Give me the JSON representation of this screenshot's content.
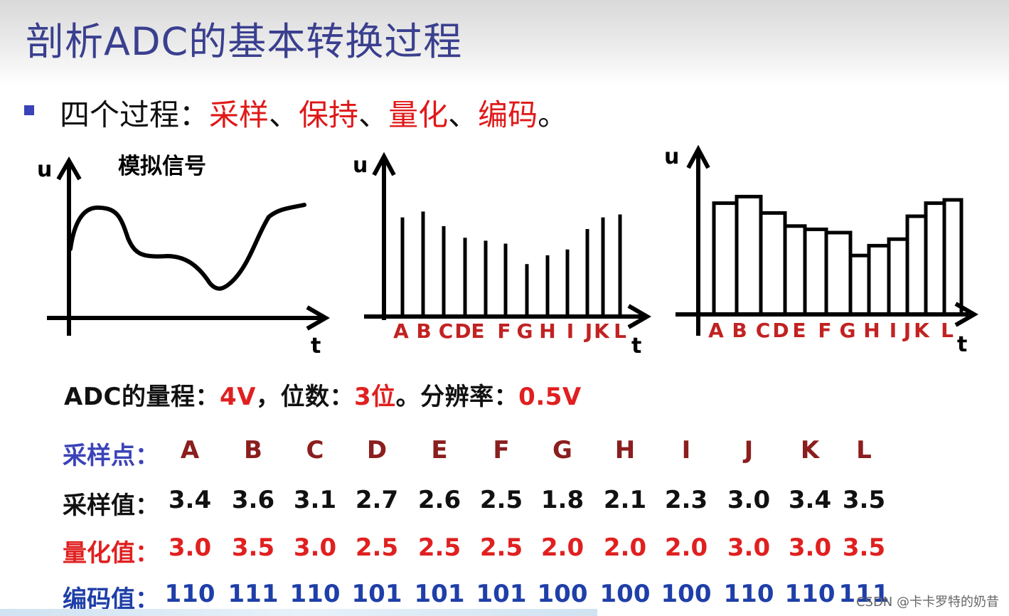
{
  "title": "剖析ADC的基本转换过程",
  "bullet": {
    "prefix": "四个过程：",
    "processes": [
      "采样",
      "保持",
      "量化",
      "编码"
    ],
    "separator": "、",
    "end": "。"
  },
  "diagrams": {
    "axis_u": "u",
    "axis_t": "t",
    "analog_title": "模拟信号",
    "letters": [
      "A",
      "B",
      "C",
      "D",
      "E",
      "F",
      "G",
      "H",
      "I",
      "J",
      "K",
      "L"
    ]
  },
  "info": {
    "range_label": "ADC的量程：",
    "range_value": "4V",
    "sep1": "，",
    "bits_label": "位数：",
    "bits_value": "3位",
    "sep2": "。",
    "res_label": "分辨率：",
    "res_value": "0.5V"
  },
  "table": {
    "labels": {
      "points": "采样点：",
      "samples": "采样值：",
      "quantized": "量化值：",
      "codes": "编码值："
    },
    "points": [
      "A",
      "B",
      "C",
      "D",
      "E",
      "F",
      "G",
      "H",
      "I",
      "J",
      "K",
      "L"
    ],
    "samples": [
      "3.4",
      "3.6",
      "3.1",
      "2.7",
      "2.6",
      "2.5",
      "1.8",
      "2.1",
      "2.3",
      "3.0",
      "3.4",
      "3.5"
    ],
    "quantized": [
      "3.0",
      "3.5",
      "3.0",
      "2.5",
      "2.5",
      "2.5",
      "2.0",
      "2.0",
      "2.0",
      "3.0",
      "3.0",
      "3.5"
    ],
    "codes": [
      "110",
      "111",
      "110",
      "101",
      "101",
      "101",
      "100",
      "100",
      "100",
      "110",
      "110",
      "111"
    ]
  },
  "watermark": "CSDN @卡卡罗特的奶昔",
  "colors": {
    "title": "#3a3f8f",
    "accent_red": "#e02020",
    "code_blue": "#1f3fa8",
    "label_blue": "#3b43b8"
  },
  "chart_data": [
    {
      "type": "line",
      "x_label": "t",
      "y_label": "u",
      "title": "模拟信号"
    },
    {
      "type": "bar",
      "x_label": "t",
      "y_label": "u",
      "categories": [
        "A",
        "B",
        "C",
        "D",
        "E",
        "F",
        "G",
        "H",
        "I",
        "J",
        "K",
        "L"
      ],
      "values": [
        3.4,
        3.6,
        3.1,
        2.7,
        2.6,
        2.5,
        1.8,
        2.1,
        2.3,
        3.0,
        3.4,
        3.5
      ]
    },
    {
      "type": "bar",
      "x_label": "t",
      "y_label": "u",
      "categories": [
        "A",
        "B",
        "C",
        "D",
        "E",
        "F",
        "G",
        "H",
        "I",
        "J",
        "K",
        "L"
      ],
      "values": [
        3.4,
        3.6,
        3.1,
        2.7,
        2.6,
        2.5,
        1.8,
        2.1,
        2.3,
        3.0,
        3.4,
        3.5
      ]
    }
  ]
}
